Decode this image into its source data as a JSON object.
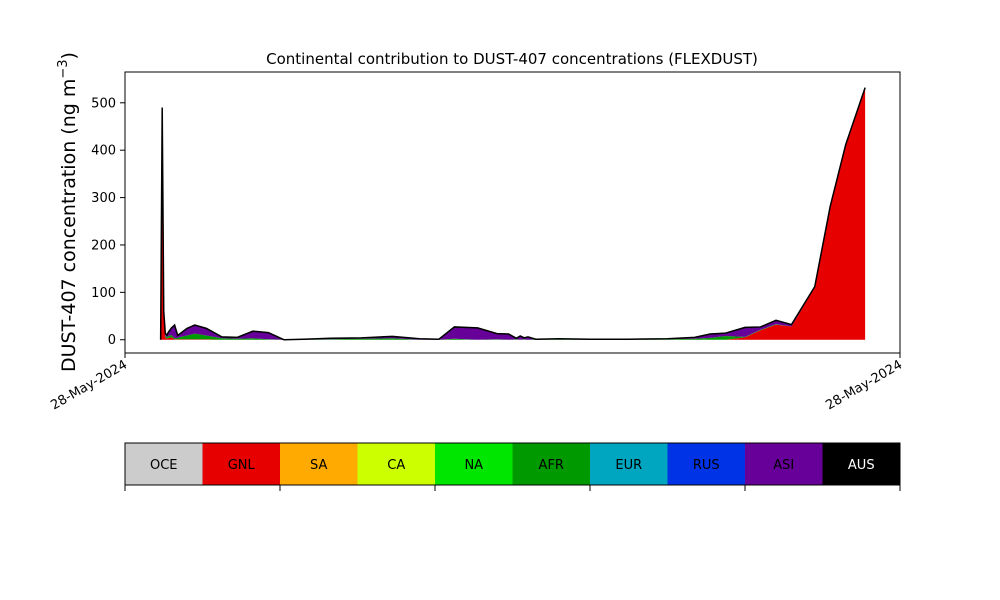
{
  "chart_data": {
    "type": "area",
    "title": "Continental contribution to DUST-407 concentrations (FLEXDUST)",
    "ylabel_main": "DUST-407 concentration (ng m",
    "ylabel_sup": "−3",
    "ylabel_close": ")",
    "xlabel": "",
    "xlim": [
      0,
      100
    ],
    "ylim": [
      -28,
      565
    ],
    "yticks": [
      0,
      100,
      200,
      300,
      400,
      500
    ],
    "xtick_labels": [
      "28-May-2024",
      "28-May-2024"
    ],
    "x": [
      4.6,
      4.8,
      5.0,
      5.2,
      5.4,
      5.6,
      6.0,
      6.4,
      6.8,
      7.2,
      8.0,
      9.0,
      10.5,
      12.5,
      14.5,
      16.5,
      18.5,
      20.5,
      23.0,
      26.5,
      30.5,
      34.5,
      38.0,
      40.5,
      42.5,
      45.5,
      48.0,
      49.5,
      50.5,
      51.0,
      51.5,
      52.0,
      53.0,
      56.0,
      60.0,
      65.0,
      70.0,
      73.5,
      75.5,
      77.5,
      80.0,
      82.0,
      84.0,
      86.0,
      89.0,
      91.0,
      93.0,
      95.5
    ],
    "series": [
      {
        "name": "GNL",
        "color": "#e60000",
        "values": [
          0,
          490,
          60,
          5,
          2,
          4,
          5,
          1,
          1,
          1,
          1,
          1,
          1,
          0,
          0,
          0,
          0,
          0,
          0,
          0,
          0,
          0,
          0,
          0,
          0,
          0,
          0,
          0,
          0,
          0,
          0,
          0,
          0,
          0,
          0,
          0,
          0,
          0,
          0,
          0,
          5,
          20,
          32,
          28,
          110,
          280,
          410,
          530
        ]
      },
      {
        "name": "AFR",
        "color": "#009900",
        "values": [
          0,
          0,
          0,
          4,
          3,
          4,
          5,
          2,
          3,
          5,
          8,
          12,
          8,
          3,
          2,
          3,
          1,
          0,
          0,
          1,
          2,
          3,
          0,
          0,
          2,
          0,
          1,
          0,
          1,
          0,
          1,
          0,
          1,
          1,
          0,
          0,
          1,
          2,
          4,
          8,
          1,
          1,
          1,
          0,
          0,
          0,
          0,
          0
        ]
      },
      {
        "name": "ASI",
        "color": "#660099",
        "values": [
          0,
          0,
          0,
          4,
          5,
          8,
          15,
          28,
          5,
          8,
          15,
          18,
          15,
          3,
          3,
          15,
          14,
          0,
          1,
          2,
          2,
          4,
          2,
          1,
          25,
          25,
          12,
          12,
          2,
          8,
          3,
          6,
          0,
          1,
          1,
          1,
          1,
          3,
          8,
          6,
          20,
          6,
          8,
          4,
          2,
          2,
          2,
          2
        ]
      },
      {
        "name": "AUS",
        "color": "#000000",
        "values": [
          0,
          0,
          0,
          0,
          0,
          0,
          0,
          0,
          0,
          0,
          0,
          0,
          0,
          0,
          0,
          0,
          0,
          0,
          0,
          0,
          0,
          0,
          0,
          0,
          0,
          0,
          0,
          0,
          0,
          0,
          0,
          0,
          0,
          0,
          0,
          0,
          0,
          0,
          0,
          0,
          0,
          0,
          0,
          0,
          0,
          0,
          0,
          0
        ]
      }
    ],
    "legend": [
      {
        "label": "OCE",
        "color": "#cccccc",
        "text_color": "#000000"
      },
      {
        "label": "GNL",
        "color": "#e60000",
        "text_color": "#000000"
      },
      {
        "label": "SA",
        "color": "#ffaa00",
        "text_color": "#000000"
      },
      {
        "label": "CA",
        "color": "#ccff00",
        "text_color": "#000000"
      },
      {
        "label": "NA",
        "color": "#00e600",
        "text_color": "#000000"
      },
      {
        "label": "AFR",
        "color": "#009900",
        "text_color": "#000000"
      },
      {
        "label": "EUR",
        "color": "#00a6bf",
        "text_color": "#000000"
      },
      {
        "label": "RUS",
        "color": "#0033e6",
        "text_color": "#000000"
      },
      {
        "label": "ASI",
        "color": "#660099",
        "text_color": "#000000"
      },
      {
        "label": "AUS",
        "color": "#000000",
        "text_color": "#ffffff"
      }
    ],
    "grid": false
  }
}
